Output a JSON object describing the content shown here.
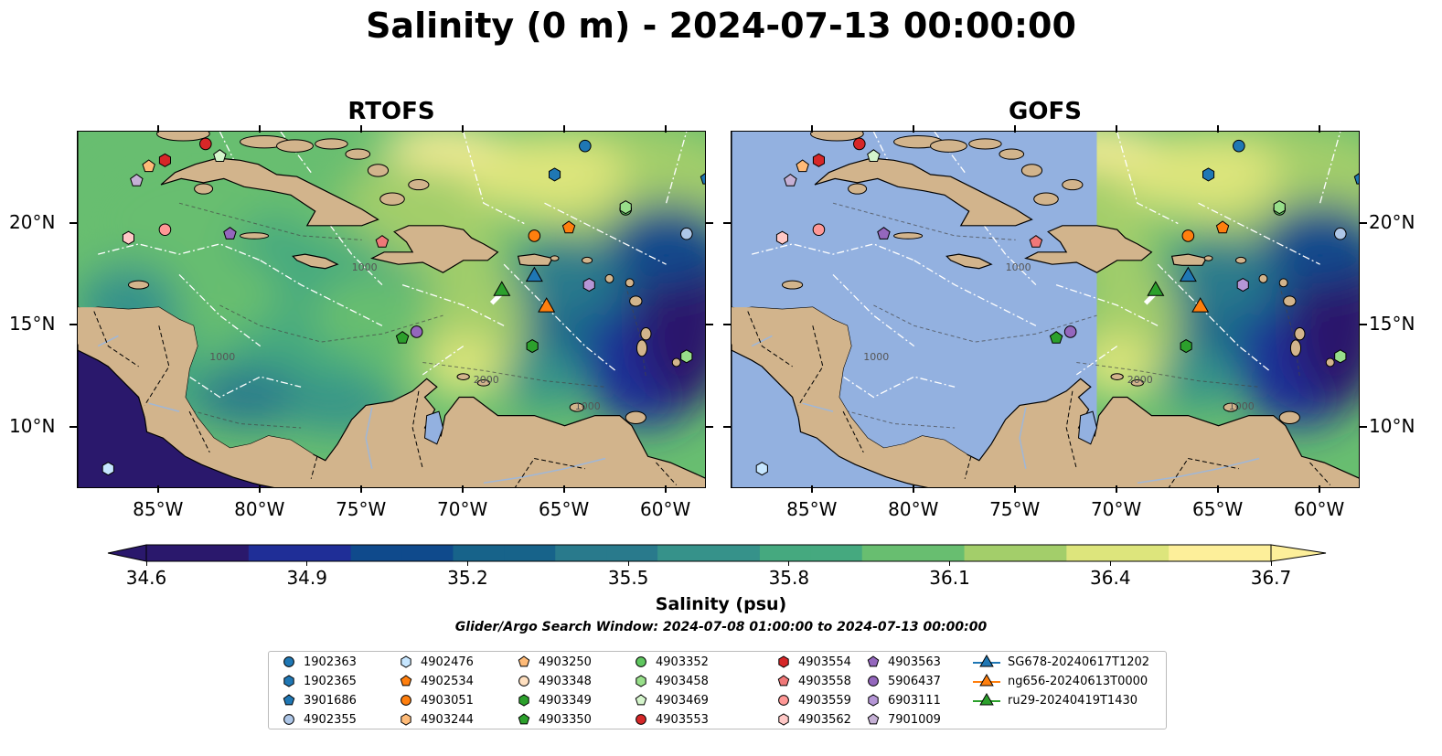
{
  "title": "Salinity (0 m) - 2024-07-13 00:00:00",
  "panels": [
    {
      "name": "RTOFS"
    },
    {
      "name": "GOFS"
    }
  ],
  "map": {
    "lon_range": [
      -89,
      -58
    ],
    "lat_range": [
      7,
      24.5
    ],
    "lon_ticks": [
      "85°W",
      "80°W",
      "75°W",
      "70°W",
      "65°W",
      "60°W"
    ],
    "lat_ticks": [
      "10°N",
      "15°N",
      "20°N"
    ],
    "land_color": "#d2b48c",
    "nodata_color": "#93b1e0",
    "contour_labels": [
      "1000",
      "2000",
      "1000",
      "1000"
    ]
  },
  "colorbar": {
    "label": "Salinity (psu)",
    "vmin": 34.6,
    "vmax": 36.7,
    "ticks": [
      "34.6",
      "34.9",
      "35.2",
      "35.5",
      "35.8",
      "36.1",
      "36.4",
      "36.7"
    ],
    "colormap": "haline",
    "colors": [
      "#2a186c",
      "#1f2e97",
      "#0f4a8c",
      "#17638a",
      "#297a8c",
      "#36928a",
      "#45a97f",
      "#68be70",
      "#a3ce6a",
      "#dde57c",
      "#fdef9a"
    ]
  },
  "search_window": "Glider/Argo Search Window: 2024-07-08 01:00:00 to 2024-07-13 00:00:00",
  "legend": [
    {
      "label": "1902363",
      "marker": "circle",
      "color": "#1f77b4"
    },
    {
      "label": "1902365",
      "marker": "hexagon",
      "color": "#1f77b4"
    },
    {
      "label": "3901686",
      "marker": "pentagon",
      "color": "#1f77b4"
    },
    {
      "label": "4902355",
      "marker": "circle",
      "color": "#aec7e8"
    },
    {
      "label": "4902476",
      "marker": "hexagon",
      "color": "#c6e6ff"
    },
    {
      "label": "4902534",
      "marker": "pentagon",
      "color": "#ff7f0e"
    },
    {
      "label": "4903051",
      "marker": "circle",
      "color": "#ff7f0e"
    },
    {
      "label": "4903244",
      "marker": "hexagon",
      "color": "#ffbb78"
    },
    {
      "label": "4903250",
      "marker": "pentagon",
      "color": "#ffbb78"
    },
    {
      "label": "4903348",
      "marker": "circle",
      "color": "#ffe0c0"
    },
    {
      "label": "4903349",
      "marker": "hexagon",
      "color": "#2ca02c"
    },
    {
      "label": "4903350",
      "marker": "pentagon",
      "color": "#2ca02c"
    },
    {
      "label": "4903352",
      "marker": "circle",
      "color": "#5fc65f"
    },
    {
      "label": "4903458",
      "marker": "hexagon",
      "color": "#98df8a"
    },
    {
      "label": "4903469",
      "marker": "pentagon",
      "color": "#d5f5cc"
    },
    {
      "label": "4903553",
      "marker": "circle",
      "color": "#d62728"
    },
    {
      "label": "4903554",
      "marker": "hexagon",
      "color": "#d62728"
    },
    {
      "label": "4903558",
      "marker": "pentagon",
      "color": "#f07878"
    },
    {
      "label": "4903559",
      "marker": "circle",
      "color": "#ff9896"
    },
    {
      "label": "4903562",
      "marker": "hexagon",
      "color": "#ffc8c6"
    },
    {
      "label": "4903563",
      "marker": "pentagon",
      "color": "#9467bd"
    },
    {
      "label": "5906437",
      "marker": "circle",
      "color": "#9467bd"
    },
    {
      "label": "6903111",
      "marker": "hexagon",
      "color": "#b596d6"
    },
    {
      "label": "7901009",
      "marker": "pentagon",
      "color": "#c5b0d5"
    },
    {
      "label": "SG678-20240617T1202",
      "marker": "triangle",
      "color": "#1f77b4"
    },
    {
      "label": "ng656-20240613T0000",
      "marker": "triangle",
      "color": "#ff7f0e"
    },
    {
      "label": "ru29-20240419T1430",
      "marker": "triangle",
      "color": "#2ca02c"
    }
  ],
  "floats": [
    {
      "id": "1902363",
      "lon": -64.0,
      "lat": 23.8
    },
    {
      "id": "1902365",
      "lon": -65.5,
      "lat": 22.4
    },
    {
      "id": "3901686",
      "lon": -58.0,
      "lat": 22.2
    },
    {
      "id": "4902355",
      "lon": -59.0,
      "lat": 19.5
    },
    {
      "id": "4902476",
      "lon": -87.5,
      "lat": 8.0
    },
    {
      "id": "4902534",
      "lon": -64.8,
      "lat": 19.8
    },
    {
      "id": "4903051",
      "lon": -66.5,
      "lat": 19.4
    },
    {
      "id": "4903250",
      "lon": -85.5,
      "lat": 22.8
    },
    {
      "id": "4903349",
      "lon": -66.6,
      "lat": 14.0
    },
    {
      "id": "4903350",
      "lon": -73.0,
      "lat": 14.4
    },
    {
      "id": "4903352",
      "lon": -62.0,
      "lat": 20.7
    },
    {
      "id": "4903458",
      "lon": -62.0,
      "lat": 20.8
    },
    {
      "id": "4903469",
      "lon": -82.0,
      "lat": 23.3
    },
    {
      "id": "4903553",
      "lon": -82.7,
      "lat": 23.9
    },
    {
      "id": "4903554",
      "lon": -84.7,
      "lat": 23.1
    },
    {
      "id": "4903558",
      "lon": -74.0,
      "lat": 19.1
    },
    {
      "id": "4903559",
      "lon": -84.7,
      "lat": 19.7
    },
    {
      "id": "4903562",
      "lon": -86.5,
      "lat": 19.3
    },
    {
      "id": "4903563",
      "lon": -81.5,
      "lat": 19.5
    },
    {
      "id": "5906437",
      "lon": -72.3,
      "lat": 14.7
    },
    {
      "id": "6903111",
      "lon": -63.8,
      "lat": 17.0
    },
    {
      "id": "7901009",
      "lon": -86.1,
      "lat": 22.1
    },
    {
      "id": "4902355b",
      "lon": -59.0,
      "lat": 13.5
    }
  ],
  "gliders": [
    {
      "id": "SG678-20240617T1202",
      "lon": -66.5,
      "lat": 17.4
    },
    {
      "id": "ng656-20240613T0000",
      "lon": -65.9,
      "lat": 15.9
    },
    {
      "id": "ru29-20240419T1430",
      "lon": -68.1,
      "lat": 16.7
    }
  ],
  "gofs_data_west_limit_lon": -71.0
}
